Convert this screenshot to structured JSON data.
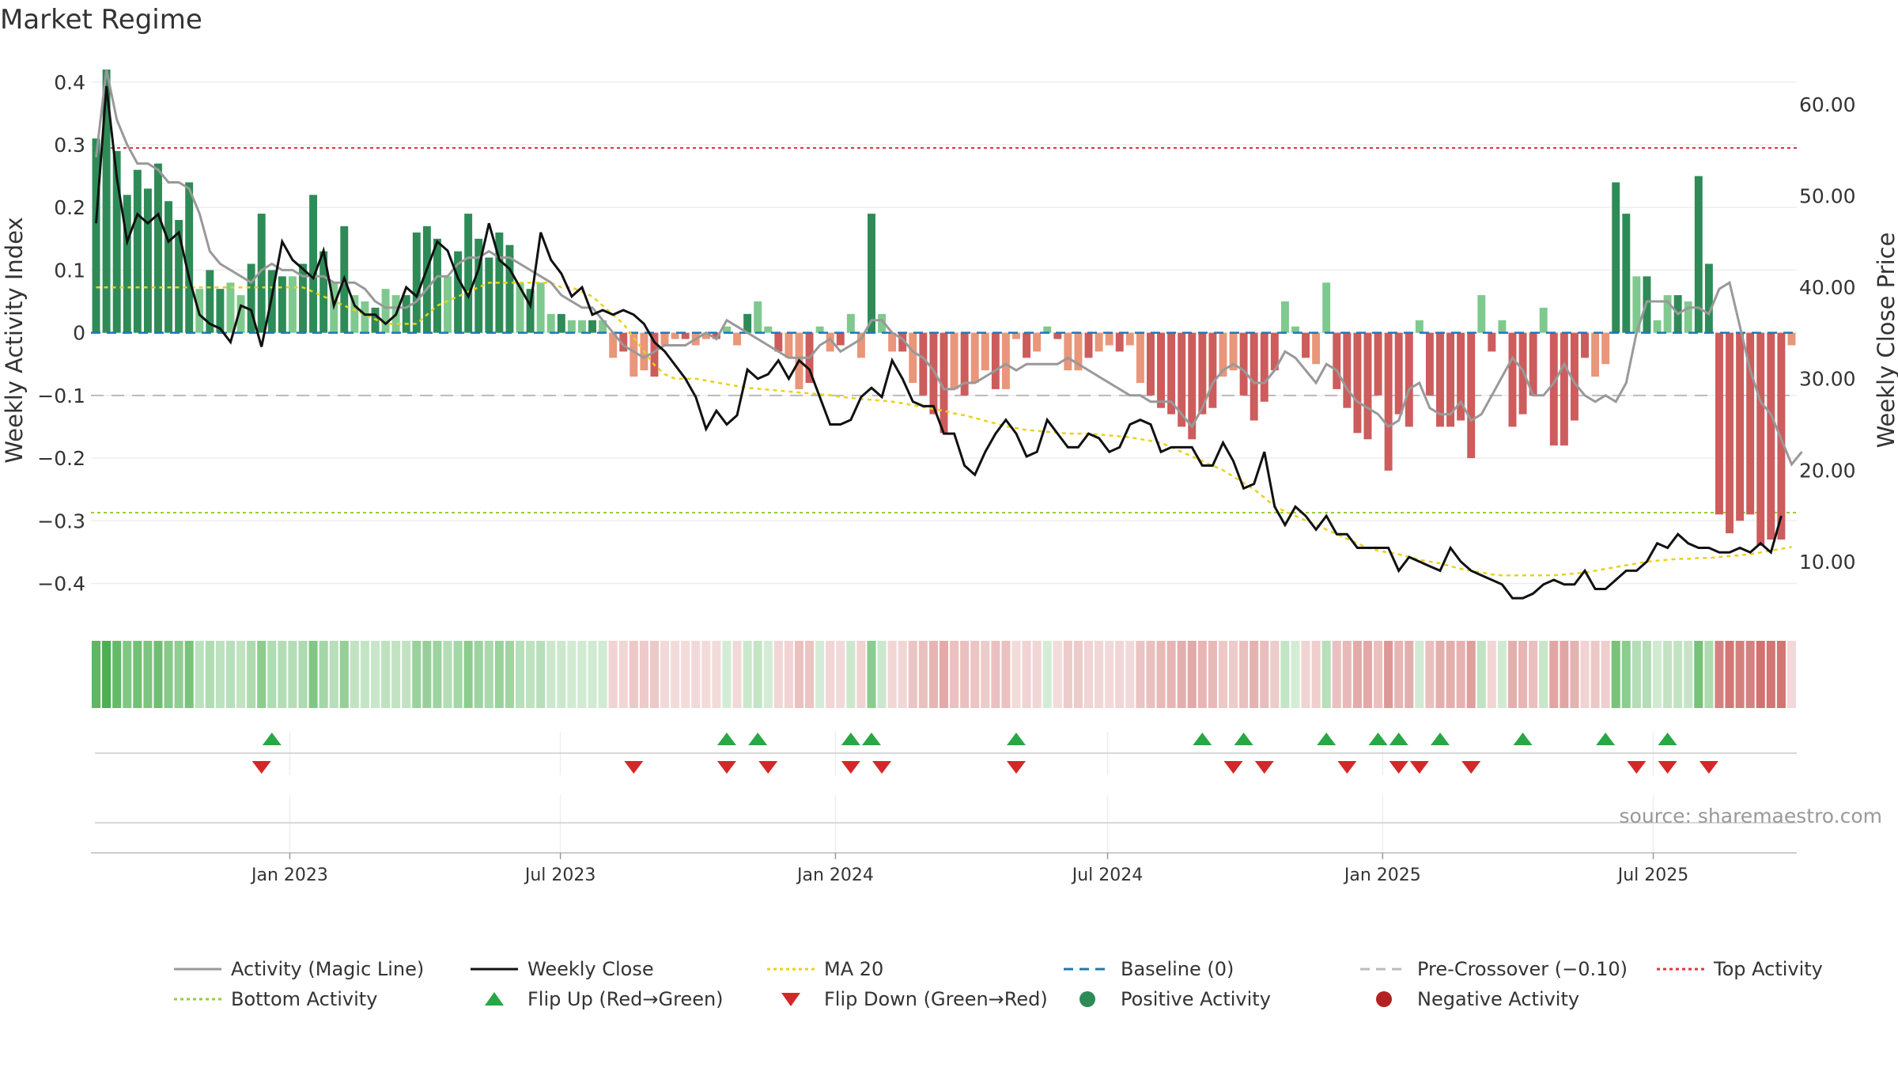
{
  "title": "Market Regime",
  "source": "source: sharemaestro.com",
  "colors": {
    "pos_dark": "#2e8b57",
    "pos_light": "#7fc98f",
    "neg_dark": "#cd5c5c",
    "neg_light": "#e9967a",
    "activity_line": "#999999",
    "close_line": "#111111",
    "ma_line": "#e8d21a",
    "baseline": "#1f77b4",
    "pre_cross": "#bbbbbb",
    "top": "#dc3545",
    "bottom": "#9acd32",
    "flip_up": "#28a745",
    "flip_down": "#d62728"
  },
  "chart_data": {
    "type": "bar",
    "title": "Market Regime",
    "ylabel": "Weekly Activity Index",
    "y2label": "Weekly Close Price",
    "ylim": [
      -0.46,
      0.43
    ],
    "y2lim": [
      3.5,
      64.5
    ],
    "yticks": [
      {
        "v": 0.4,
        "label": "0.4"
      },
      {
        "v": 0.3,
        "label": "0.3"
      },
      {
        "v": 0.2,
        "label": "0.2"
      },
      {
        "v": 0.1,
        "label": "0.1"
      },
      {
        "v": 0,
        "label": "0"
      },
      {
        "v": -0.1,
        "label": "−0.1"
      },
      {
        "v": -0.2,
        "label": "−0.2"
      },
      {
        "v": -0.3,
        "label": "−0.3"
      },
      {
        "v": -0.4,
        "label": "−0.4"
      }
    ],
    "y2ticks": [
      {
        "v": 60,
        "label": "60.00"
      },
      {
        "v": 50,
        "label": "50.00"
      },
      {
        "v": 40,
        "label": "40.00"
      },
      {
        "v": 30,
        "label": "30.00"
      },
      {
        "v": 20,
        "label": "20.00"
      },
      {
        "v": 10,
        "label": "10.00"
      }
    ],
    "xticks": [
      {
        "date": "2023-01-01",
        "label": "Jan 2023"
      },
      {
        "date": "2023-07-01",
        "label": "Jul 2023"
      },
      {
        "date": "2024-01-01",
        "label": "Jan 2024"
      },
      {
        "date": "2024-07-01",
        "label": "Jul 2024"
      },
      {
        "date": "2025-01-01",
        "label": "Jan 2025"
      },
      {
        "date": "2025-07-01",
        "label": "Jul 2025"
      }
    ],
    "start_date": "2022-08-21",
    "end_date": "2025-10-05",
    "grid": true,
    "legend_position": "bottom",
    "activity_bars": [
      0.31,
      0.42,
      0.29,
      0.22,
      0.26,
      0.23,
      0.27,
      0.21,
      0.18,
      0.24,
      0.07,
      0.1,
      0.07,
      0.08,
      0.06,
      0.11,
      0.19,
      0.1,
      0.09,
      0.09,
      0.11,
      0.22,
      0.13,
      0.08,
      0.17,
      0.06,
      0.05,
      0.04,
      0.07,
      0.06,
      0.06,
      0.16,
      0.17,
      0.15,
      0.09,
      0.13,
      0.19,
      0.15,
      0.12,
      0.16,
      0.14,
      0.08,
      0.07,
      0.08,
      0.03,
      0.03,
      0.02,
      0.02,
      0.02,
      0.02,
      -0.04,
      -0.03,
      -0.07,
      -0.06,
      -0.07,
      -0.02,
      -0.01,
      -0.01,
      -0.02,
      -0.01,
      -0.01,
      0.01,
      -0.02,
      0.03,
      0.05,
      0.01,
      -0.03,
      -0.04,
      -0.09,
      -0.08,
      0.01,
      -0.03,
      -0.02,
      0.03,
      -0.04,
      0.19,
      0.03,
      -0.03,
      -0.03,
      -0.08,
      -0.1,
      -0.13,
      -0.16,
      -0.09,
      -0.1,
      -0.08,
      -0.06,
      -0.09,
      -0.09,
      -0.01,
      -0.04,
      -0.03,
      0.01,
      -0.01,
      -0.06,
      -0.06,
      -0.04,
      -0.03,
      -0.02,
      -0.03,
      -0.02,
      -0.08,
      -0.1,
      -0.12,
      -0.13,
      -0.15,
      -0.17,
      -0.13,
      -0.12,
      -0.07,
      -0.06,
      -0.1,
      -0.14,
      -0.11,
      -0.06,
      0.05,
      0.01,
      -0.04,
      -0.05,
      0.08,
      -0.09,
      -0.12,
      -0.16,
      -0.17,
      -0.1,
      -0.22,
      -0.13,
      -0.15,
      0.02,
      -0.1,
      -0.15,
      -0.15,
      -0.14,
      -0.2,
      0.06,
      -0.03,
      0.02,
      -0.15,
      -0.13,
      -0.1,
      0.04,
      -0.18,
      -0.18,
      -0.14,
      -0.04,
      -0.07,
      -0.05,
      0.24,
      0.19,
      0.09,
      0.09,
      0.02,
      0.06,
      0.06,
      0.05,
      0.25,
      0.11,
      -0.29,
      -0.32,
      -0.3,
      -0.29,
      -0.34,
      -0.33,
      -0.33,
      -0.02
    ],
    "activity_line": [
      0.28,
      0.42,
      0.34,
      0.3,
      0.27,
      0.27,
      0.26,
      0.24,
      0.24,
      0.23,
      0.19,
      0.13,
      0.11,
      0.1,
      0.09,
      0.08,
      0.1,
      0.11,
      0.1,
      0.1,
      0.09,
      0.09,
      0.09,
      0.08,
      0.08,
      0.08,
      0.07,
      0.05,
      0.04,
      0.04,
      0.04,
      0.05,
      0.07,
      0.09,
      0.09,
      0.11,
      0.12,
      0.12,
      0.13,
      0.12,
      0.12,
      0.11,
      0.1,
      0.09,
      0.08,
      0.06,
      0.05,
      0.04,
      0.04,
      0.02,
      0.0,
      -0.02,
      -0.03,
      -0.04,
      -0.03,
      -0.02,
      -0.02,
      -0.02,
      -0.01,
      0.0,
      -0.01,
      0.02,
      0.01,
      0.0,
      -0.01,
      -0.02,
      -0.03,
      -0.04,
      -0.04,
      -0.04,
      -0.02,
      -0.01,
      -0.03,
      -0.02,
      -0.01,
      0.02,
      0.02,
      0.0,
      -0.01,
      -0.03,
      -0.04,
      -0.06,
      -0.09,
      -0.09,
      -0.08,
      -0.08,
      -0.07,
      -0.06,
      -0.05,
      -0.06,
      -0.05,
      -0.05,
      -0.05,
      -0.05,
      -0.04,
      -0.05,
      -0.06,
      -0.07,
      -0.08,
      -0.09,
      -0.1,
      -0.1,
      -0.11,
      -0.11,
      -0.11,
      -0.13,
      -0.15,
      -0.12,
      -0.08,
      -0.06,
      -0.05,
      -0.06,
      -0.08,
      -0.08,
      -0.06,
      -0.03,
      -0.04,
      -0.06,
      -0.08,
      -0.05,
      -0.06,
      -0.09,
      -0.11,
      -0.12,
      -0.13,
      -0.15,
      -0.14,
      -0.09,
      -0.08,
      -0.12,
      -0.13,
      -0.13,
      -0.11,
      -0.14,
      -0.13,
      -0.1,
      -0.07,
      -0.04,
      -0.06,
      -0.1,
      -0.1,
      -0.08,
      -0.05,
      -0.08,
      -0.1,
      -0.11,
      -0.1,
      -0.11,
      -0.08,
      0.0,
      0.05,
      0.05,
      0.05,
      0.03,
      0.04,
      0.04,
      0.03,
      0.07,
      0.08,
      0.01,
      -0.06,
      -0.11,
      -0.13,
      -0.17,
      -0.21,
      -0.19
    ],
    "weekly_close": [
      47.0,
      62.0,
      52.0,
      45.0,
      48.0,
      47.0,
      48.0,
      45.0,
      46.0,
      41.0,
      37.0,
      36.0,
      35.5,
      34.0,
      38.0,
      37.5,
      33.5,
      39.0,
      45.0,
      43.0,
      42.0,
      41.0,
      44.0,
      38.0,
      41.0,
      38.0,
      37.0,
      37.0,
      36.0,
      37.0,
      40.0,
      39.0,
      42.0,
      45.0,
      44.0,
      41.0,
      39.0,
      42.0,
      47.0,
      43.0,
      42.0,
      40.0,
      38.0,
      46.0,
      43.0,
      41.5,
      39.0,
      40.0,
      37.0,
      37.5,
      37.0,
      37.5,
      37.0,
      36.0,
      34.0,
      33.0,
      31.5,
      30.0,
      28.0,
      24.5,
      26.5,
      25.0,
      26.0,
      31.0,
      30.0,
      30.5,
      32.0,
      30.0,
      32.0,
      31.0,
      28.0,
      25.0,
      25.0,
      25.5,
      28.0,
      29.0,
      28.0,
      32.0,
      30.0,
      27.5,
      27.0,
      27.0,
      24.0,
      24.0,
      20.5,
      19.5,
      22.0,
      24.0,
      25.5,
      24.0,
      21.5,
      22.0,
      25.5,
      24.0,
      22.5,
      22.5,
      24.0,
      23.5,
      22.0,
      22.5,
      25.0,
      25.5,
      25.0,
      22.0,
      22.5,
      22.5,
      22.5,
      20.5,
      20.5,
      23.0,
      21.0,
      18.0,
      18.5,
      22.0,
      16.0,
      14.0,
      16.0,
      15.0,
      13.5,
      15.0,
      13.0,
      13.0,
      11.5,
      11.5,
      11.5,
      11.5,
      9.0,
      10.5,
      10.0,
      9.5,
      9.0,
      11.5,
      10.0,
      9.0,
      8.5,
      8.0,
      7.5,
      6.0,
      6.0,
      6.5,
      7.5,
      8.0,
      7.5,
      7.5,
      9.0,
      7.0,
      7.0,
      8.0,
      9.0,
      9.0,
      10.0,
      12.0,
      11.5,
      13.0,
      12.0,
      11.5,
      11.5,
      11.0,
      11.0,
      11.5,
      11.0,
      12.0,
      11.0,
      15.0
    ],
    "ma20": [
      40.0,
      40.0,
      40.0,
      40.0,
      40.0,
      40.0,
      40.0,
      40.0,
      40.0,
      40.0,
      40.0,
      40.0,
      40.0,
      40.0,
      40.0,
      40.0,
      40.0,
      40.0,
      40.0,
      40.0,
      40.0,
      39.5,
      39.0,
      38.5,
      38.0,
      37.5,
      37.0,
      36.5,
      36.0,
      36.0,
      36.0,
      36.0,
      37.0,
      38.0,
      38.5,
      39.0,
      39.5,
      40.0,
      40.5,
      40.5,
      40.5,
      40.5,
      40.5,
      40.5,
      40.5,
      40.0,
      40.0,
      39.5,
      39.0,
      38.0,
      37.0,
      36.0,
      34.5,
      33.0,
      31.5,
      30.5,
      30.0,
      30.0,
      30.0,
      29.8,
      29.6,
      29.4,
      29.2,
      29.0,
      28.9,
      28.8,
      28.7,
      28.6,
      28.5,
      28.4,
      28.3,
      28.2,
      28.0,
      27.9,
      27.8,
      27.7,
      27.6,
      27.5,
      27.3,
      27.1,
      26.9,
      26.7,
      26.5,
      26.2,
      26.0,
      25.7,
      25.4,
      25.1,
      24.8,
      24.6,
      24.4,
      24.3,
      24.2,
      24.1,
      24.0,
      24.0,
      24.0,
      23.9,
      23.8,
      23.7,
      23.6,
      23.4,
      23.2,
      23.0,
      22.5,
      22.0,
      21.5,
      21.0,
      20.5,
      20.0,
      19.3,
      18.6,
      17.9,
      17.0,
      16.0,
      15.5,
      15.0,
      14.5,
      14.0,
      13.5,
      13.0,
      12.5,
      12.0,
      11.5,
      11.2,
      11.0,
      10.8,
      10.5,
      10.2,
      10.0,
      9.8,
      9.5,
      9.2,
      9.0,
      8.8,
      8.6,
      8.5,
      8.5,
      8.5,
      8.5,
      8.5,
      8.5,
      8.6,
      8.7,
      8.8,
      9.0,
      9.2,
      9.4,
      9.6,
      9.8,
      10.0,
      10.1,
      10.2,
      10.3,
      10.3,
      10.4,
      10.4,
      10.5,
      10.6,
      10.7,
      10.8,
      11.0,
      11.2,
      11.4,
      11.6
    ],
    "top_activity": 0.295,
    "bottom_activity": -0.287,
    "pre_crossover": -0.1,
    "baseline": 0,
    "flip_up_weeks": [
      17,
      61,
      64,
      73,
      75,
      89,
      107,
      111,
      119,
      124,
      126,
      130,
      138,
      146,
      152
    ],
    "flip_down_weeks": [
      16,
      52,
      61,
      65,
      73,
      76,
      89,
      110,
      113,
      121,
      126,
      128,
      133,
      149,
      152,
      156
    ],
    "legend": [
      {
        "kind": "line",
        "label": "Activity (Magic Line)",
        "color": "#999999",
        "dash": ""
      },
      {
        "kind": "line",
        "label": "Weekly Close",
        "color": "#111111",
        "dash": ""
      },
      {
        "kind": "line",
        "label": "MA 20",
        "color": "#e8d21a",
        "dash": "4,4"
      },
      {
        "kind": "line",
        "label": "Baseline (0)",
        "color": "#1f77b4",
        "dash": "12,8"
      },
      {
        "kind": "line",
        "label": "Pre-Crossover (−0.10)",
        "color": "#bbbbbb",
        "dash": "12,8"
      },
      {
        "kind": "line",
        "label": "Top Activity",
        "color": "#dc3545",
        "dash": "4,4"
      },
      {
        "kind": "line",
        "label": "Bottom Activity",
        "color": "#9acd32",
        "dash": "4,4"
      },
      {
        "kind": "up",
        "label": "Flip Up (Red→Green)",
        "color": "#28a745",
        "dash": ""
      },
      {
        "kind": "down",
        "label": "Flip Down (Green→Red)",
        "color": "#d62728",
        "dash": ""
      },
      {
        "kind": "dot",
        "label": "Positive Activity",
        "color": "#2e8b57",
        "dash": ""
      },
      {
        "kind": "dot",
        "label": "Negative Activity",
        "color": "#b22222",
        "dash": ""
      }
    ]
  }
}
